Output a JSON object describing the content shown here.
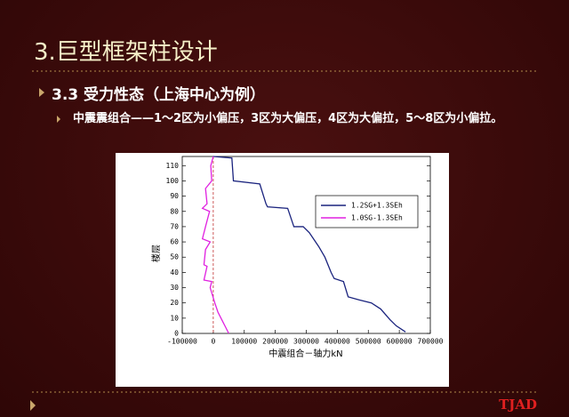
{
  "slide": {
    "title": "3.巨型框架柱设计",
    "bullet": "3.3 受力性态（上海中心为例）",
    "sub_bullet": "中震震组合——1～2区为小偏压，3区为大偏压，4区为大偏拉，5～8区为小偏拉。",
    "logo": "TJAD"
  },
  "chart_data": {
    "type": "line",
    "x_label": "中震组合－轴力kN",
    "y_label": "楼层",
    "xlim": [
      -100000,
      700000
    ],
    "xticks": [
      -100000,
      0,
      100000,
      200000,
      300000,
      400000,
      500000,
      600000,
      700000
    ],
    "ylim": [
      0,
      116
    ],
    "yticks": [
      0,
      10,
      20,
      30,
      40,
      50,
      60,
      70,
      80,
      90,
      100,
      110
    ],
    "legend": "upper right",
    "series": [
      {
        "name": "1.2SG+1.3SEh",
        "color": "#1a237e",
        "x": [
          0,
          60000,
          65000,
          150000,
          170000,
          175000,
          240000,
          260000,
          290000,
          310000,
          340000,
          360000,
          380000,
          390000,
          420000,
          435000,
          470000,
          510000,
          540000,
          570000,
          590000,
          620000
        ],
        "values": [
          116,
          115,
          100,
          98,
          85,
          83,
          82,
          70,
          70,
          66,
          57,
          50,
          40,
          36,
          34,
          24,
          22,
          20,
          16,
          9,
          5,
          1
        ]
      },
      {
        "name": "1.0SG-1.3SEh",
        "color": "#e020e0",
        "x": [
          0,
          -8000,
          -5000,
          -25000,
          -20000,
          -35000,
          -12000,
          -25000,
          -35000,
          -10000,
          -25000,
          -30000,
          -20000,
          -30000,
          -5000,
          -10000,
          5000,
          15000,
          30000,
          40000,
          50000
        ],
        "values": [
          116,
          110,
          100,
          95,
          85,
          82,
          80,
          70,
          62,
          60,
          55,
          45,
          44,
          35,
          34,
          30,
          20,
          14,
          8,
          4,
          0
        ]
      }
    ]
  }
}
